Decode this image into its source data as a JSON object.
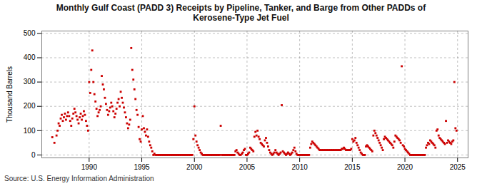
{
  "chart_data": {
    "type": "scatter",
    "title": "Monthly Gulf Coast (PADD 3) Receipts by Pipeline, Tanker, and Barge from Other PADDs of\nKerosene-Type Jet Fuel",
    "ylabel": "Thousand Barrels",
    "source": "Source: U.S. Energy Information Administration",
    "color": "#cc0000",
    "marker": "square",
    "grid": true,
    "xlim": [
      1985.5,
      2026.0
    ],
    "ylim": [
      -12,
      510
    ],
    "xticks": [
      1990,
      1995,
      2000,
      2005,
      2010,
      2015,
      2020,
      2025
    ],
    "yticks": [
      0,
      100,
      200,
      300,
      400,
      500
    ],
    "x": [
      1986.5,
      1986.7,
      1986.9,
      1987.0,
      1987.1,
      1987.2,
      1987.3,
      1987.4,
      1987.5,
      1987.6,
      1987.7,
      1987.8,
      1987.9,
      1988.0,
      1988.1,
      1988.2,
      1988.3,
      1988.4,
      1988.5,
      1988.6,
      1988.7,
      1988.8,
      1988.9,
      1989.0,
      1989.1,
      1989.2,
      1989.3,
      1989.4,
      1989.5,
      1989.6,
      1989.7,
      1989.8,
      1989.9,
      1990.0,
      1990.1,
      1990.2,
      1990.3,
      1990.4,
      1990.5,
      1990.6,
      1990.7,
      1990.8,
      1990.9,
      1991.0,
      1991.1,
      1991.2,
      1991.3,
      1991.4,
      1991.5,
      1991.6,
      1991.7,
      1991.8,
      1991.9,
      1992.0,
      1992.1,
      1992.2,
      1992.3,
      1992.4,
      1992.5,
      1992.6,
      1992.7,
      1992.8,
      1992.9,
      1993.0,
      1993.1,
      1993.2,
      1993.3,
      1993.4,
      1993.5,
      1993.6,
      1993.7,
      1993.8,
      1993.9,
      1994.0,
      1994.1,
      1994.2,
      1994.3,
      1994.4,
      1994.5,
      1994.6,
      1994.7,
      1994.8,
      1994.9,
      1995.0,
      1995.1,
      1995.2,
      1995.3,
      1995.4,
      1995.5,
      1995.6,
      1995.7,
      1995.8,
      1995.9,
      1996.0,
      1996.1,
      1996.2,
      1996.3,
      1996.4,
      1996.5,
      1996.6,
      1996.7,
      1996.8,
      1996.9,
      1997.0,
      1997.1,
      1997.2,
      1997.3,
      1997.4,
      1997.5,
      1997.6,
      1997.7,
      1997.8,
      1997.9,
      1998.0,
      1998.1,
      1998.2,
      1998.3,
      1998.4,
      1998.5,
      1998.6,
      1998.7,
      1998.8,
      1998.9,
      1999.0,
      1999.1,
      1999.2,
      1999.3,
      1999.4,
      1999.5,
      1999.6,
      1999.7,
      1999.8,
      1999.9,
      2000.0,
      2000.1,
      2000.2,
      2000.3,
      2000.4,
      2000.5,
      2000.6,
      2000.7,
      2000.8,
      2000.9,
      2001.0,
      2001.1,
      2001.2,
      2001.3,
      2001.4,
      2001.5,
      2001.6,
      2001.7,
      2001.8,
      2001.9,
      2002.0,
      2002.1,
      2002.2,
      2002.3,
      2002.4,
      2002.5,
      2002.6,
      2002.7,
      2002.8,
      2002.9,
      2003.0,
      2003.1,
      2003.2,
      2003.3,
      2003.4,
      2003.5,
      2003.6,
      2003.7,
      2003.8,
      2003.9,
      2004.0,
      2004.1,
      2004.2,
      2004.3,
      2004.4,
      2004.5,
      2004.6,
      2004.7,
      2004.8,
      2004.9,
      2005.0,
      2005.1,
      2005.2,
      2005.3,
      2005.4,
      2005.5,
      2005.6,
      2005.7,
      2005.8,
      2005.9,
      2006.0,
      2006.1,
      2006.2,
      2006.3,
      2006.4,
      2006.5,
      2006.6,
      2006.7,
      2006.8,
      2006.9,
      2007.0,
      2007.1,
      2007.2,
      2007.3,
      2007.4,
      2007.5,
      2007.6,
      2007.7,
      2007.8,
      2007.9,
      2008.0,
      2008.1,
      2008.2,
      2008.3,
      2008.4,
      2008.5,
      2008.6,
      2008.7,
      2008.8,
      2008.9,
      2009.0,
      2009.1,
      2009.2,
      2009.3,
      2009.4,
      2009.5,
      2009.6,
      2009.7,
      2009.8,
      2009.9,
      2010.0,
      2010.1,
      2010.2,
      2010.3,
      2010.4,
      2010.5,
      2010.6,
      2010.7,
      2010.8,
      2010.9,
      2011.0,
      2011.1,
      2011.2,
      2011.3,
      2011.4,
      2011.5,
      2011.6,
      2011.7,
      2011.8,
      2011.9,
      2012.0,
      2012.1,
      2012.2,
      2012.3,
      2012.4,
      2012.5,
      2012.6,
      2012.7,
      2012.8,
      2012.9,
      2013.0,
      2013.1,
      2013.2,
      2013.3,
      2013.4,
      2013.5,
      2013.6,
      2013.7,
      2013.8,
      2013.9,
      2014.0,
      2014.1,
      2014.2,
      2014.3,
      2014.4,
      2014.5,
      2014.6,
      2014.7,
      2014.8,
      2014.9,
      2015.0,
      2015.1,
      2015.2,
      2015.3,
      2015.4,
      2015.5,
      2015.6,
      2015.7,
      2015.8,
      2015.9,
      2016.0,
      2016.1,
      2016.2,
      2016.3,
      2016.4,
      2016.5,
      2016.6,
      2016.7,
      2016.8,
      2016.9,
      2017.0,
      2017.1,
      2017.2,
      2017.3,
      2017.4,
      2017.5,
      2017.6,
      2017.7,
      2017.8,
      2017.9,
      2018.0,
      2018.1,
      2018.2,
      2018.3,
      2018.4,
      2018.5,
      2018.6,
      2018.7,
      2018.8,
      2018.9,
      2019.0,
      2019.1,
      2019.2,
      2019.3,
      2019.4,
      2019.5,
      2019.6,
      2019.7,
      2019.8,
      2019.9,
      2020.0,
      2020.1,
      2020.2,
      2020.3,
      2020.4,
      2020.5,
      2020.6,
      2020.7,
      2020.8,
      2020.9,
      2021.0,
      2021.1,
      2021.2,
      2021.3,
      2021.4,
      2021.5,
      2021.6,
      2021.7,
      2021.8,
      2021.9,
      2022.0,
      2022.1,
      2022.2,
      2022.3,
      2022.4,
      2022.5,
      2022.6,
      2022.7,
      2022.8,
      2022.9,
      2023.0,
      2023.1,
      2023.2,
      2023.3,
      2023.4,
      2023.5,
      2023.6,
      2023.7,
      2023.8,
      2023.9,
      2024.0,
      2024.1,
      2024.2,
      2024.3,
      2024.4,
      2024.5,
      2024.6,
      2024.7,
      2024.8,
      2024.9
    ],
    "values": [
      73,
      50,
      80,
      100,
      130,
      120,
      150,
      165,
      140,
      155,
      170,
      145,
      160,
      175,
      160,
      140,
      120,
      150,
      170,
      190,
      175,
      160,
      145,
      130,
      155,
      170,
      145,
      160,
      180,
      165,
      140,
      120,
      100,
      300,
      255,
      350,
      430,
      300,
      250,
      220,
      190,
      160,
      175,
      185,
      200,
      325,
      290,
      270,
      235,
      210,
      185,
      165,
      180,
      195,
      215,
      200,
      180,
      155,
      170,
      190,
      215,
      230,
      200,
      260,
      235,
      215,
      195,
      175,
      155,
      130,
      110,
      125,
      145,
      440,
      350,
      310,
      270,
      230,
      185,
      165,
      115,
      65,
      55,
      105,
      160,
      110,
      95,
      80,
      105,
      75,
      55,
      40,
      30,
      15,
      0,
      5,
      0,
      0,
      0,
      0,
      0,
      0,
      0,
      0,
      0,
      0,
      0,
      0,
      0,
      0,
      0,
      0,
      0,
      0,
      0,
      0,
      0,
      0,
      0,
      0,
      0,
      0,
      0,
      0,
      0,
      0,
      0,
      0,
      0,
      0,
      0,
      0,
      65,
      200,
      80,
      55,
      40,
      30,
      20,
      10,
      5,
      0,
      0,
      0,
      0,
      0,
      0,
      0,
      0,
      0,
      0,
      0,
      0,
      0,
      0,
      0,
      0,
      0,
      120,
      0,
      0,
      0,
      0,
      0,
      0,
      0,
      0,
      0,
      0,
      0,
      0,
      0,
      15,
      20,
      10,
      5,
      0,
      0,
      5,
      10,
      20,
      25,
      0,
      0,
      5,
      10,
      30,
      25,
      20,
      15,
      75,
      95,
      80,
      100,
      75,
      65,
      50,
      45,
      40,
      35,
      60,
      70,
      50,
      35,
      20,
      10,
      5,
      0,
      5,
      10,
      20,
      10,
      5,
      0,
      5,
      10,
      205,
      15,
      10,
      5,
      0,
      5,
      10,
      5,
      0,
      5,
      10,
      20,
      30,
      15,
      5,
      0,
      0,
      0,
      0,
      0,
      0,
      0,
      0,
      0,
      0,
      0,
      0,
      30,
      45,
      55,
      50,
      45,
      40,
      35,
      30,
      25,
      20,
      20,
      20,
      20,
      20,
      20,
      20,
      20,
      20,
      20,
      20,
      20,
      20,
      20,
      20,
      20,
      20,
      20,
      20,
      20,
      20,
      25,
      25,
      30,
      25,
      20,
      20,
      20,
      20,
      20,
      25,
      65,
      55,
      60,
      70,
      50,
      40,
      30,
      20,
      10,
      5,
      0,
      0,
      0,
      35,
      40,
      35,
      30,
      25,
      20,
      15,
      80,
      100,
      90,
      80,
      70,
      60,
      50,
      40,
      30,
      20,
      65,
      75,
      70,
      65,
      60,
      55,
      50,
      45,
      40,
      30,
      55,
      80,
      75,
      70,
      65,
      60,
      50,
      365,
      40,
      35,
      25,
      20,
      15,
      10,
      5,
      0,
      0,
      0,
      0,
      0,
      0,
      0,
      0,
      0,
      0,
      0,
      0,
      0,
      0,
      0,
      30,
      40,
      50,
      45,
      60,
      55,
      50,
      45,
      40,
      30,
      100,
      105,
      80,
      70,
      65,
      60,
      55,
      50,
      45,
      140,
      50,
      60,
      55,
      50,
      45,
      55,
      60,
      300,
      110,
      100
    ]
  }
}
